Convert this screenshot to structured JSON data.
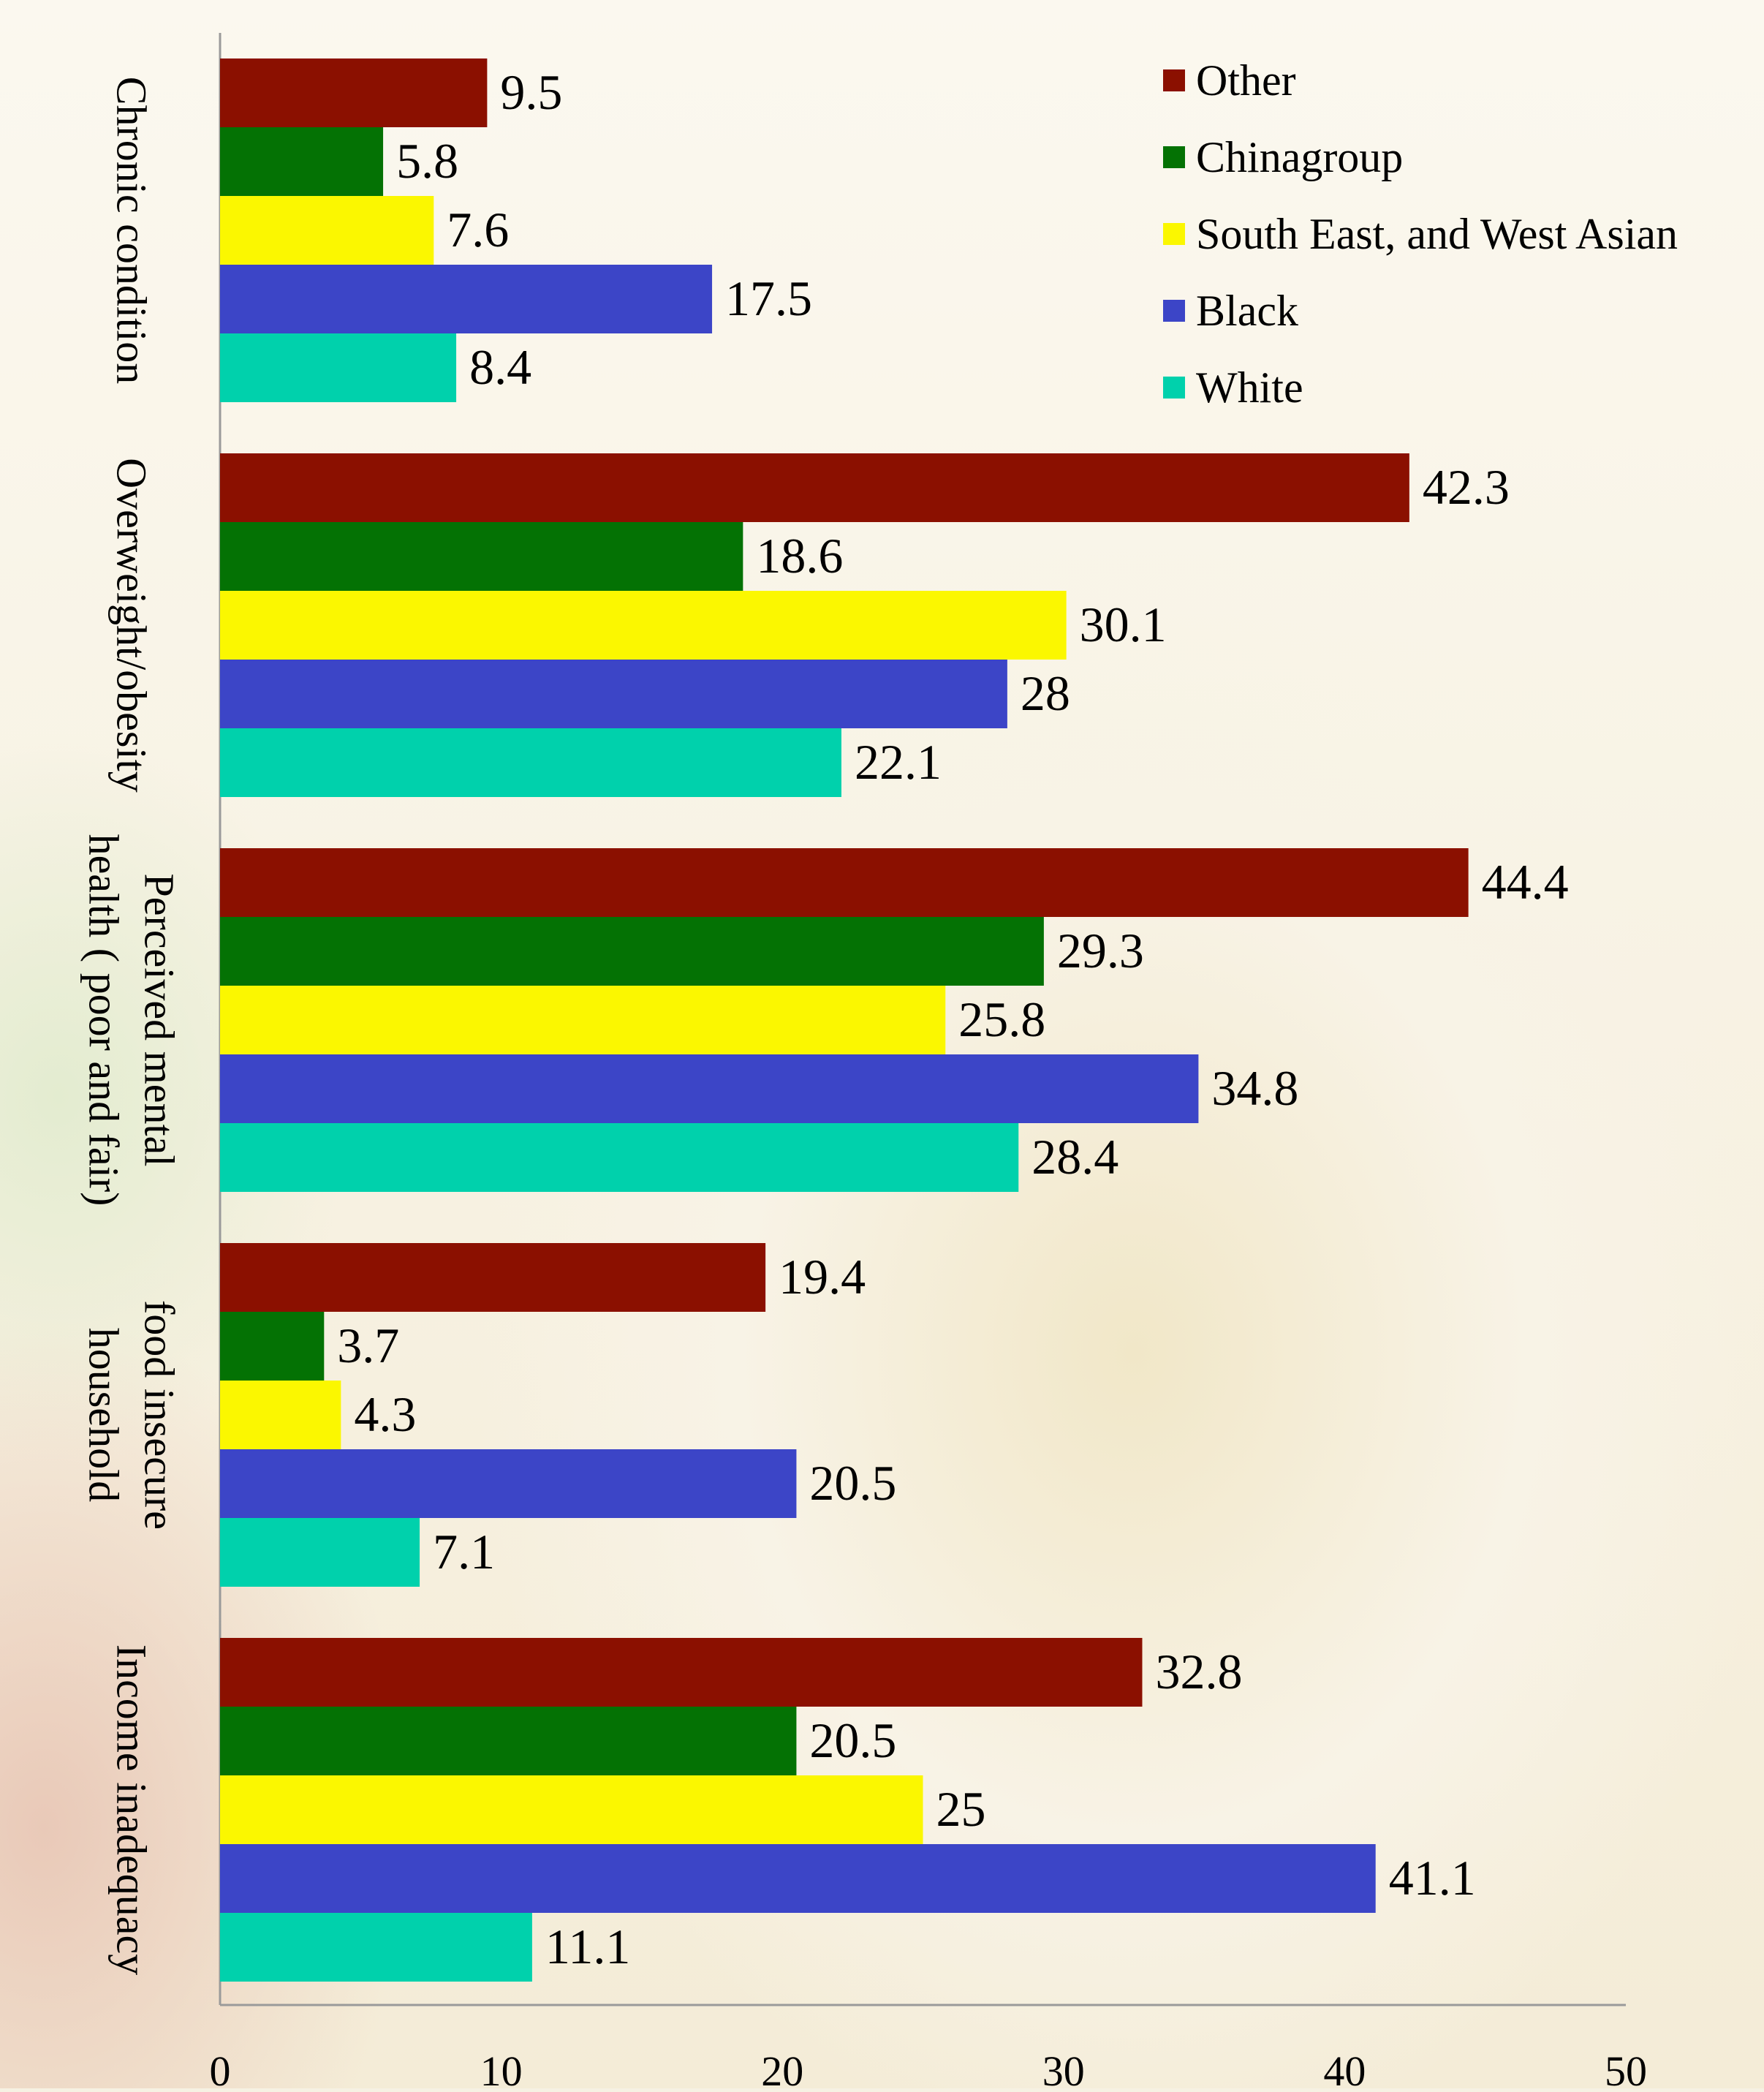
{
  "chart_data": {
    "type": "bar",
    "orientation": "horizontal",
    "title": "",
    "xlabel": "",
    "ylabel": "",
    "xlim": [
      0,
      50
    ],
    "x_ticks": [
      0,
      10,
      20,
      30,
      40,
      50
    ],
    "grid": false,
    "legend_position": "top-right",
    "categories": [
      [
        "Chronic condition"
      ],
      [
        "Overweight/obesity"
      ],
      [
        "Perceived mental",
        "health ( poor and fair)"
      ],
      [
        "food insecure",
        "household"
      ],
      [
        "Income inadequacy"
      ]
    ],
    "series": [
      {
        "name": "Other",
        "color": "#8b1000",
        "values": [
          9.5,
          42.3,
          44.4,
          19.4,
          32.8
        ]
      },
      {
        "name": "Chinagroup",
        "color": "#047204",
        "values": [
          5.8,
          18.6,
          29.3,
          3.7,
          20.5
        ]
      },
      {
        "name": "South East, and West Asian",
        "color": "#fbf700",
        "values": [
          7.6,
          30.1,
          25.8,
          4.3,
          25
        ]
      },
      {
        "name": "Black",
        "color": "#3c45c7",
        "values": [
          17.5,
          28,
          34.8,
          20.5,
          41.1
        ]
      },
      {
        "name": "White",
        "color": "#00d1ac",
        "values": [
          8.4,
          22.1,
          28.4,
          7.1,
          11.1
        ]
      }
    ]
  }
}
